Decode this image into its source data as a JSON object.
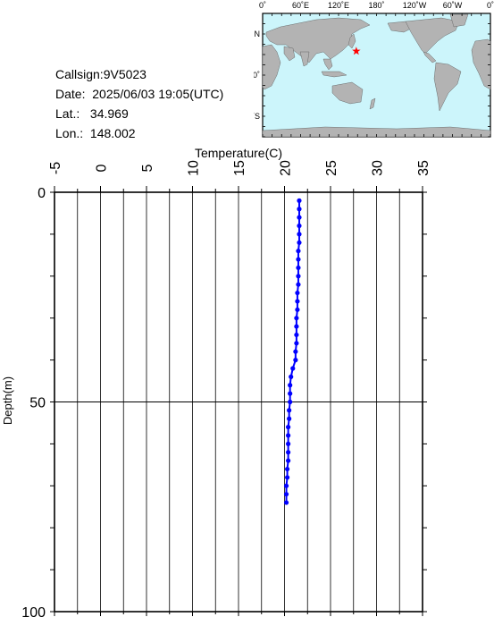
{
  "info": {
    "callsign": "Callsign:9V5023",
    "date": "Date:  2025/06/03 19:05(UTC)",
    "lat": "Lat.:   34.969",
    "lon": "Lon.:  148.002"
  },
  "map": {
    "top_labels": [
      "0˚",
      "60˚E",
      "120˚E",
      "180˚",
      "120˚W",
      "60˚W",
      "0˚"
    ],
    "left_labels": [
      "60˚N",
      "0˚",
      "60˚S"
    ],
    "station": {
      "lat": 34.969,
      "lon": 148.002
    },
    "colors": {
      "ocean": "#ccf5fb",
      "land": "#b3b3b3",
      "marker": "#ff0000"
    }
  },
  "chart_data": {
    "type": "line",
    "xlabel": "Temperature(C)",
    "ylabel": "Depth(m)",
    "xlim": [
      -5,
      35
    ],
    "ylim": [
      0,
      100
    ],
    "x_ticks": [
      -5,
      0,
      5,
      10,
      15,
      20,
      25,
      30,
      35
    ],
    "y_ticks": [
      0,
      50,
      100
    ],
    "color": "#0000ff",
    "series": [
      {
        "depth": [
          2,
          4,
          6,
          8,
          10,
          12,
          14,
          16,
          18,
          20,
          22,
          24,
          26,
          28,
          30,
          32,
          34,
          36,
          38,
          40,
          42,
          44,
          46,
          48,
          50,
          52,
          54,
          56,
          58,
          60,
          62,
          64,
          66,
          68,
          70,
          72,
          74
        ],
        "temperature": [
          21.6,
          21.6,
          21.6,
          21.6,
          21.6,
          21.6,
          21.5,
          21.5,
          21.5,
          21.5,
          21.5,
          21.4,
          21.4,
          21.4,
          21.3,
          21.3,
          21.3,
          21.3,
          21.2,
          21.2,
          20.9,
          20.7,
          20.6,
          20.6,
          20.6,
          20.5,
          20.5,
          20.4,
          20.4,
          20.4,
          20.4,
          20.4,
          20.3,
          20.3,
          20.2,
          20.2,
          20.2
        ]
      }
    ]
  }
}
